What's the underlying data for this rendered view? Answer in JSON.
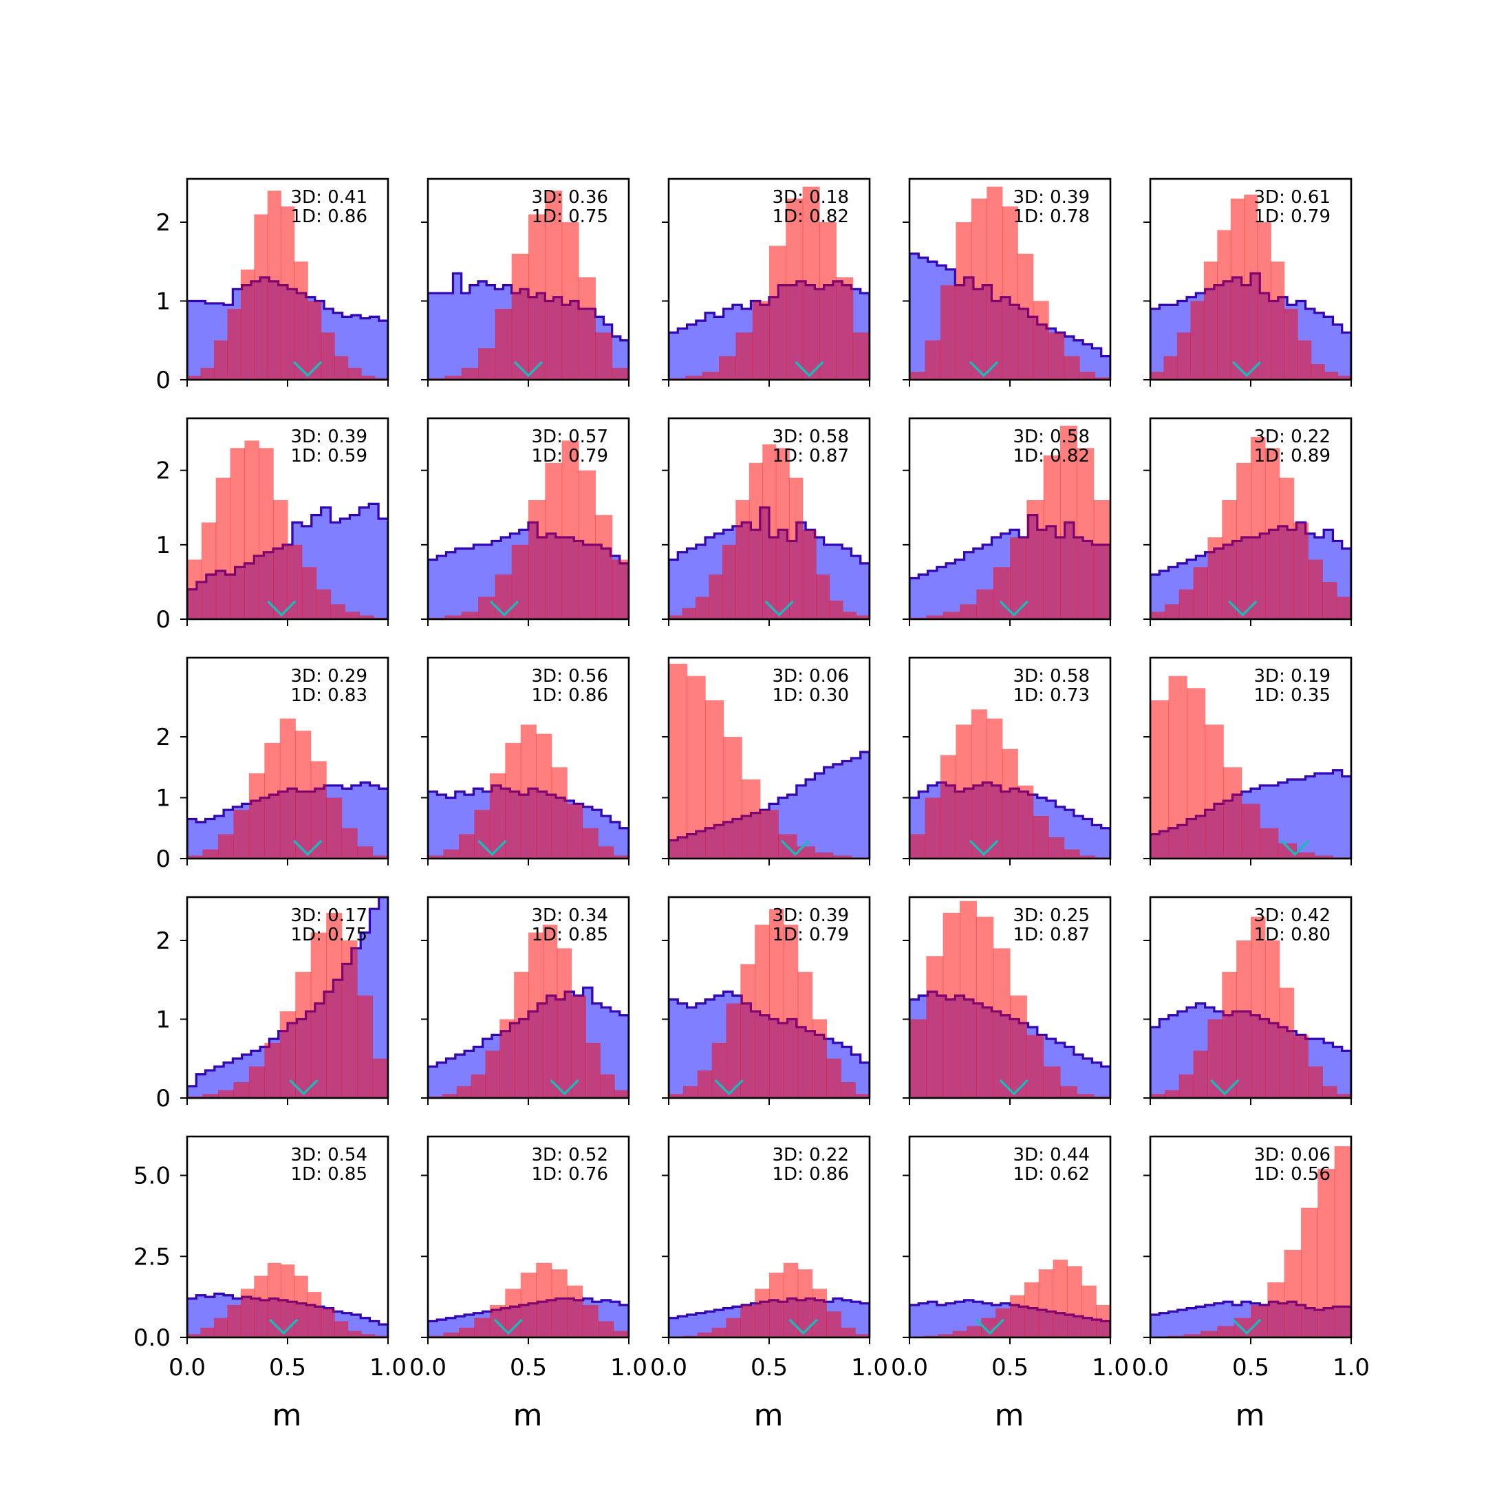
{
  "figure": {
    "xlabel": "m",
    "x_ticks": [
      "0.0",
      "0.5",
      "1.0"
    ],
    "y_ticks_rows_1_to_4": [
      "0",
      "1",
      "2"
    ],
    "y_ticks_row_5": [
      "0.0",
      "2.5",
      "5.0"
    ],
    "colors": {
      "prior_fill": "#7f7fff",
      "prior_edge": "#0000dd",
      "posterior_fill": "rgba(255,0,0,0.5)",
      "posterior_edge": "#7a0a70",
      "marker": "#1fb8b8"
    }
  },
  "chart_data": [
    {
      "type": "histogram",
      "row": 1,
      "col": 1,
      "annotation": [
        "3D: 0.41",
        "1D: 0.86"
      ],
      "ylim": [
        0,
        2.55
      ],
      "marker_x": 0.6,
      "blue_values": [
        1.0,
        1.0,
        0.97,
        0.97,
        0.95,
        1.15,
        1.2,
        1.25,
        1.3,
        1.25,
        1.2,
        1.15,
        1.1,
        1.05,
        1.0,
        0.9,
        0.85,
        0.8,
        0.82,
        0.78,
        0.8,
        0.75
      ],
      "red_values": [
        0.05,
        0.15,
        0.5,
        0.9,
        1.4,
        2.1,
        2.4,
        2.2,
        1.5,
        1.0,
        0.6,
        0.3,
        0.15,
        0.05,
        0.02
      ]
    },
    {
      "type": "histogram",
      "row": 1,
      "col": 2,
      "annotation": [
        "3D: 0.36",
        "1D: 0.75"
      ],
      "ylim": [
        0,
        2.55
      ],
      "marker_x": 0.5,
      "blue_values": [
        1.1,
        1.1,
        1.1,
        1.35,
        1.1,
        1.2,
        1.25,
        1.2,
        1.15,
        1.2,
        1.1,
        1.15,
        1.05,
        1.1,
        1.0,
        1.05,
        0.95,
        1.0,
        0.9,
        0.9,
        0.8,
        0.7,
        0.55,
        0.5
      ],
      "red_values": [
        0.02,
        0.05,
        0.15,
        0.4,
        0.9,
        1.6,
        2.1,
        2.4,
        2.0,
        1.3,
        0.6,
        0.15
      ]
    },
    {
      "type": "histogram",
      "row": 1,
      "col": 3,
      "annotation": [
        "3D: 0.18",
        "1D: 0.82"
      ],
      "ylim": [
        0,
        2.55
      ],
      "marker_x": 0.7,
      "blue_values": [
        0.6,
        0.65,
        0.7,
        0.75,
        0.85,
        0.8,
        0.9,
        0.95,
        0.9,
        1.0,
        0.95,
        1.05,
        1.2,
        1.2,
        1.25,
        1.2,
        1.15,
        1.2,
        1.25,
        1.2,
        1.15,
        1.1
      ],
      "red_values": [
        0.02,
        0.05,
        0.1,
        0.3,
        0.6,
        1.0,
        1.7,
        2.3,
        2.45,
        2.0,
        1.3,
        0.6
      ]
    },
    {
      "type": "histogram",
      "row": 1,
      "col": 4,
      "annotation": [
        "3D: 0.39",
        "1D: 0.78"
      ],
      "ylim": [
        0,
        2.55
      ],
      "marker_x": 0.37,
      "blue_values": [
        1.6,
        1.55,
        1.5,
        1.45,
        1.4,
        1.2,
        1.3,
        1.15,
        1.2,
        1.0,
        1.05,
        0.95,
        0.9,
        0.8,
        0.7,
        0.65,
        0.6,
        0.55,
        0.5,
        0.45,
        0.4,
        0.3
      ],
      "red_values": [
        0.1,
        0.5,
        1.2,
        2.0,
        2.3,
        2.45,
        2.2,
        1.6,
        1.0,
        0.6,
        0.3,
        0.1,
        0.03
      ]
    },
    {
      "type": "histogram",
      "row": 1,
      "col": 5,
      "annotation": [
        "3D: 0.61",
        "1D: 0.79"
      ],
      "ylim": [
        0,
        2.55
      ],
      "marker_x": 0.48,
      "blue_values": [
        0.9,
        0.95,
        0.95,
        1.0,
        1.05,
        1.1,
        1.15,
        1.2,
        1.25,
        1.3,
        1.2,
        1.35,
        1.1,
        1.0,
        1.05,
        0.95,
        1.0,
        0.9,
        0.85,
        0.8,
        0.7,
        0.6
      ],
      "red_values": [
        0.1,
        0.3,
        0.6,
        1.0,
        1.5,
        1.9,
        2.3,
        2.35,
        2.0,
        1.5,
        0.9,
        0.5,
        0.2,
        0.1,
        0.05
      ]
    },
    {
      "type": "histogram",
      "row": 2,
      "col": 1,
      "annotation": [
        "3D: 0.39",
        "1D: 0.59"
      ],
      "ylim": [
        0,
        2.7
      ],
      "marker_x": 0.47,
      "blue_values": [
        0.4,
        0.5,
        0.6,
        0.65,
        0.6,
        0.7,
        0.75,
        0.85,
        0.9,
        0.95,
        1.0,
        1.3,
        1.25,
        1.4,
        1.5,
        1.3,
        1.35,
        1.4,
        1.5,
        1.55,
        1.35
      ],
      "red_values": [
        0.8,
        1.3,
        1.9,
        2.3,
        2.4,
        2.3,
        1.6,
        1.0,
        0.7,
        0.4,
        0.2,
        0.1,
        0.05,
        0.02
      ]
    },
    {
      "type": "histogram",
      "row": 2,
      "col": 2,
      "annotation": [
        "3D: 0.57",
        "1D: 0.79"
      ],
      "ylim": [
        0,
        2.7
      ],
      "marker_x": 0.38,
      "blue_values": [
        0.8,
        0.85,
        0.9,
        0.95,
        0.95,
        1.0,
        1.0,
        1.05,
        1.1,
        1.15,
        1.2,
        1.3,
        1.1,
        1.15,
        1.1,
        1.1,
        1.05,
        1.0,
        1.0,
        0.95,
        0.85,
        0.75
      ],
      "red_values": [
        0.02,
        0.05,
        0.1,
        0.3,
        0.6,
        1.0,
        1.6,
        2.1,
        2.4,
        2.0,
        1.4,
        0.8
      ]
    },
    {
      "type": "histogram",
      "row": 2,
      "col": 3,
      "annotation": [
        "3D: 0.58",
        "1D: 0.87"
      ],
      "ylim": [
        0,
        2.7
      ],
      "marker_x": 0.55,
      "blue_values": [
        0.8,
        0.9,
        0.95,
        1.0,
        1.1,
        1.15,
        1.2,
        1.25,
        1.3,
        1.2,
        1.5,
        1.1,
        1.2,
        1.05,
        1.3,
        1.2,
        1.1,
        1.0,
        1.0,
        0.95,
        0.85,
        0.75
      ],
      "red_values": [
        0.05,
        0.15,
        0.3,
        0.6,
        1.0,
        1.6,
        2.1,
        2.35,
        2.3,
        1.9,
        1.2,
        0.6,
        0.25,
        0.1,
        0.05
      ]
    },
    {
      "type": "histogram",
      "row": 2,
      "col": 4,
      "annotation": [
        "3D: 0.58",
        "1D: 0.82"
      ],
      "ylim": [
        0,
        2.7
      ],
      "marker_x": 0.52,
      "blue_values": [
        0.55,
        0.6,
        0.65,
        0.7,
        0.75,
        0.8,
        0.9,
        0.95,
        1.0,
        1.1,
        1.15,
        1.2,
        1.1,
        1.4,
        1.2,
        1.25,
        1.1,
        1.3,
        1.1,
        1.05,
        1.0,
        1.0
      ],
      "red_values": [
        0.02,
        0.05,
        0.1,
        0.2,
        0.4,
        0.7,
        1.1,
        1.6,
        2.2,
        2.6,
        2.3,
        1.6
      ]
    },
    {
      "type": "histogram",
      "row": 2,
      "col": 5,
      "annotation": [
        "3D: 0.22",
        "1D: 0.89"
      ],
      "ylim": [
        0,
        2.7
      ],
      "marker_x": 0.46,
      "blue_values": [
        0.6,
        0.65,
        0.7,
        0.75,
        0.8,
        0.85,
        0.9,
        0.95,
        1.0,
        1.05,
        1.1,
        1.1,
        1.15,
        1.2,
        1.25,
        1.2,
        1.3,
        1.15,
        1.1,
        1.2,
        1.05,
        0.95
      ],
      "red_values": [
        0.1,
        0.2,
        0.4,
        0.7,
        1.1,
        1.6,
        2.1,
        2.45,
        2.3,
        1.9,
        1.3,
        0.8,
        0.5,
        0.3
      ]
    },
    {
      "type": "histogram",
      "row": 3,
      "col": 1,
      "annotation": [
        "3D: 0.29",
        "1D: 0.83"
      ],
      "ylim": [
        0,
        3.3
      ],
      "marker_x": 0.6,
      "blue_values": [
        0.65,
        0.6,
        0.65,
        0.7,
        0.8,
        0.85,
        0.9,
        0.95,
        1.0,
        1.05,
        1.1,
        1.15,
        1.1,
        1.1,
        1.15,
        1.2,
        1.2,
        1.15,
        1.2,
        1.25,
        1.2,
        1.15
      ],
      "red_values": [
        0.05,
        0.15,
        0.4,
        0.8,
        1.4,
        1.9,
        2.3,
        2.1,
        1.6,
        1.0,
        0.5,
        0.2,
        0.05
      ]
    },
    {
      "type": "histogram",
      "row": 3,
      "col": 2,
      "annotation": [
        "3D: 0.56",
        "1D: 0.86"
      ],
      "ylim": [
        0,
        3.3
      ],
      "marker_x": 0.32,
      "blue_values": [
        1.1,
        1.05,
        1.0,
        1.1,
        1.05,
        1.15,
        1.1,
        1.2,
        1.15,
        1.1,
        1.05,
        1.15,
        1.1,
        1.05,
        1.0,
        0.95,
        0.9,
        0.85,
        0.8,
        0.7,
        0.6,
        0.5
      ],
      "red_values": [
        0.05,
        0.15,
        0.4,
        0.8,
        1.4,
        1.9,
        2.2,
        2.05,
        1.5,
        0.9,
        0.5,
        0.2,
        0.05
      ]
    },
    {
      "type": "histogram",
      "row": 3,
      "col": 3,
      "annotation": [
        "3D: 0.06",
        "1D: 0.30"
      ],
      "ylim": [
        0,
        3.3
      ],
      "marker_x": 0.63,
      "blue_values": [
        0.3,
        0.35,
        0.4,
        0.45,
        0.5,
        0.55,
        0.6,
        0.65,
        0.7,
        0.75,
        0.8,
        0.9,
        1.0,
        1.05,
        1.2,
        1.3,
        1.4,
        1.5,
        1.55,
        1.6,
        1.65,
        1.75
      ],
      "red_values": [
        3.2,
        3.0,
        2.6,
        2.0,
        1.3,
        0.8,
        0.4,
        0.2,
        0.1,
        0.05,
        0.02
      ]
    },
    {
      "type": "histogram",
      "row": 3,
      "col": 4,
      "annotation": [
        "3D: 0.58",
        "1D: 0.73"
      ],
      "ylim": [
        0,
        3.3
      ],
      "marker_x": 0.37,
      "blue_values": [
        1.0,
        1.1,
        1.2,
        1.25,
        1.2,
        1.1,
        1.15,
        1.2,
        1.25,
        1.2,
        1.1,
        1.15,
        1.1,
        1.05,
        1.0,
        0.95,
        0.85,
        0.8,
        0.7,
        0.65,
        0.55,
        0.5
      ],
      "red_values": [
        0.4,
        1.0,
        1.7,
        2.2,
        2.45,
        2.3,
        1.8,
        1.2,
        0.7,
        0.35,
        0.15,
        0.05,
        0.02
      ]
    },
    {
      "type": "histogram",
      "row": 3,
      "col": 5,
      "annotation": [
        "3D: 0.19",
        "1D: 0.35"
      ],
      "ylim": [
        0,
        3.3
      ],
      "marker_x": 0.72,
      "blue_values": [
        0.4,
        0.45,
        0.5,
        0.55,
        0.65,
        0.7,
        0.8,
        0.9,
        0.95,
        1.05,
        1.1,
        1.15,
        1.2,
        1.2,
        1.25,
        1.3,
        1.3,
        1.35,
        1.4,
        1.4,
        1.45,
        1.35
      ],
      "red_values": [
        2.6,
        3.0,
        2.8,
        2.2,
        1.5,
        0.9,
        0.5,
        0.25,
        0.1,
        0.05,
        0.02
      ]
    },
    {
      "type": "histogram",
      "row": 4,
      "col": 1,
      "annotation": [
        "3D: 0.17",
        "1D: 0.75"
      ],
      "ylim": [
        0,
        2.55
      ],
      "marker_x": 0.58,
      "blue_values": [
        0.15,
        0.3,
        0.35,
        0.4,
        0.45,
        0.5,
        0.55,
        0.6,
        0.65,
        0.75,
        0.85,
        0.95,
        1.0,
        1.1,
        1.2,
        1.35,
        1.5,
        1.7,
        1.9,
        2.1,
        2.4,
        2.55
      ],
      "red_values": [
        0.02,
        0.05,
        0.1,
        0.2,
        0.4,
        0.7,
        1.1,
        1.6,
        2.1,
        2.35,
        2.0,
        1.3,
        0.5
      ]
    },
    {
      "type": "histogram",
      "row": 4,
      "col": 2,
      "annotation": [
        "3D: 0.34",
        "1D: 0.85"
      ],
      "ylim": [
        0,
        2.55
      ],
      "marker_x": 0.68,
      "blue_values": [
        0.4,
        0.45,
        0.5,
        0.55,
        0.6,
        0.65,
        0.75,
        0.8,
        0.85,
        0.95,
        1.0,
        1.1,
        1.2,
        1.3,
        1.25,
        1.35,
        1.3,
        1.4,
        1.2,
        1.15,
        1.1,
        1.05
      ],
      "red_values": [
        0.02,
        0.05,
        0.15,
        0.3,
        0.6,
        1.0,
        1.6,
        2.1,
        2.2,
        1.9,
        1.3,
        0.7,
        0.3,
        0.1
      ]
    },
    {
      "type": "histogram",
      "row": 4,
      "col": 3,
      "annotation": [
        "3D: 0.39",
        "1D: 0.79"
      ],
      "ylim": [
        0,
        2.55
      ],
      "marker_x": 0.3,
      "blue_values": [
        1.25,
        1.2,
        1.15,
        1.2,
        1.25,
        1.3,
        1.35,
        1.3,
        1.2,
        1.1,
        1.05,
        1.0,
        0.95,
        1.0,
        0.9,
        0.85,
        0.8,
        0.75,
        0.7,
        0.65,
        0.55,
        0.45
      ],
      "red_values": [
        0.05,
        0.15,
        0.35,
        0.7,
        1.2,
        1.7,
        2.2,
        2.4,
        2.2,
        1.6,
        1.0,
        0.5,
        0.2,
        0.05
      ]
    },
    {
      "type": "histogram",
      "row": 4,
      "col": 4,
      "annotation": [
        "3D: 0.25",
        "1D: 0.87"
      ],
      "ylim": [
        0,
        2.55
      ],
      "marker_x": 0.52,
      "blue_values": [
        1.25,
        1.3,
        1.35,
        1.3,
        1.25,
        1.3,
        1.25,
        1.2,
        1.15,
        1.1,
        1.05,
        1.0,
        0.95,
        0.9,
        0.8,
        0.75,
        0.7,
        0.65,
        0.55,
        0.5,
        0.45,
        0.4
      ],
      "red_values": [
        1.0,
        1.8,
        2.35,
        2.5,
        2.3,
        1.9,
        1.3,
        0.8,
        0.4,
        0.15,
        0.05,
        0.02
      ]
    },
    {
      "type": "histogram",
      "row": 4,
      "col": 5,
      "annotation": [
        "3D: 0.42",
        "1D: 0.80"
      ],
      "ylim": [
        0,
        2.55
      ],
      "marker_x": 0.37,
      "blue_values": [
        0.9,
        1.0,
        1.05,
        1.1,
        1.15,
        1.2,
        1.15,
        1.1,
        1.05,
        1.1,
        1.1,
        1.05,
        1.0,
        0.95,
        0.9,
        0.85,
        0.8,
        0.75,
        0.75,
        0.7,
        0.65,
        0.6
      ],
      "red_values": [
        0.05,
        0.1,
        0.3,
        0.6,
        1.0,
        1.6,
        2.0,
        2.3,
        2.0,
        1.4,
        0.8,
        0.4,
        0.15,
        0.05
      ]
    },
    {
      "type": "histogram",
      "row": 5,
      "col": 1,
      "annotation": [
        "3D: 0.54",
        "1D: 0.85"
      ],
      "ylim": [
        0,
        6.2
      ],
      "marker_x": 0.48,
      "blue_values": [
        1.2,
        1.3,
        1.25,
        1.35,
        1.3,
        1.2,
        1.25,
        1.2,
        1.15,
        1.2,
        1.15,
        1.1,
        1.05,
        1.0,
        0.95,
        0.9,
        0.8,
        0.75,
        0.7,
        0.6,
        0.5,
        0.4
      ],
      "red_values": [
        0.1,
        0.3,
        0.6,
        1.0,
        1.5,
        1.9,
        2.3,
        2.25,
        1.9,
        1.4,
        0.9,
        0.5,
        0.2,
        0.1,
        0.05
      ]
    },
    {
      "type": "histogram",
      "row": 5,
      "col": 2,
      "annotation": [
        "3D: 0.52",
        "1D: 0.76"
      ],
      "ylim": [
        0,
        6.2
      ],
      "marker_x": 0.4,
      "blue_values": [
        0.5,
        0.55,
        0.6,
        0.65,
        0.7,
        0.75,
        0.8,
        0.85,
        0.9,
        0.95,
        1.0,
        1.05,
        1.1,
        1.15,
        1.2,
        1.2,
        1.15,
        1.2,
        1.1,
        1.15,
        1.1,
        1.0
      ],
      "red_values": [
        0.05,
        0.15,
        0.3,
        0.6,
        1.0,
        1.5,
        2.0,
        2.3,
        2.1,
        1.6,
        1.0,
        0.5,
        0.2
      ]
    },
    {
      "type": "histogram",
      "row": 5,
      "col": 3,
      "annotation": [
        "3D: 0.22",
        "1D: 0.86"
      ],
      "ylim": [
        0,
        6.2
      ],
      "marker_x": 0.67,
      "blue_values": [
        0.6,
        0.65,
        0.7,
        0.75,
        0.8,
        0.85,
        0.9,
        0.95,
        1.0,
        1.05,
        1.1,
        1.15,
        1.1,
        1.2,
        1.15,
        1.2,
        1.15,
        1.1,
        1.2,
        1.15,
        1.1,
        1.05
      ],
      "red_values": [
        0.02,
        0.05,
        0.15,
        0.3,
        0.6,
        1.0,
        1.5,
        2.0,
        2.3,
        2.1,
        1.5,
        0.8,
        0.3,
        0.1
      ]
    },
    {
      "type": "histogram",
      "row": 5,
      "col": 4,
      "annotation": [
        "3D: 0.44",
        "1D: 0.62"
      ],
      "ylim": [
        0,
        6.2
      ],
      "marker_x": 0.4,
      "blue_values": [
        1.0,
        1.05,
        1.1,
        1.0,
        1.05,
        1.1,
        1.15,
        1.1,
        1.05,
        1.0,
        1.05,
        1.0,
        0.95,
        0.9,
        0.85,
        0.8,
        0.75,
        0.7,
        0.65,
        0.6,
        0.55,
        0.5
      ],
      "red_values": [
        0.02,
        0.05,
        0.1,
        0.2,
        0.35,
        0.6,
        0.9,
        1.3,
        1.7,
        2.1,
        2.4,
        2.2,
        1.6,
        1.0
      ]
    },
    {
      "type": "histogram",
      "row": 5,
      "col": 5,
      "annotation": [
        "3D: 0.06",
        "1D: 0.56"
      ],
      "ylim": [
        0,
        6.2
      ],
      "marker_x": 0.48,
      "blue_values": [
        0.7,
        0.75,
        0.8,
        0.85,
        0.9,
        0.95,
        1.0,
        1.05,
        1.1,
        1.0,
        1.1,
        1.05,
        1.0,
        1.1,
        1.05,
        1.1,
        1.0,
        0.9,
        0.85,
        0.9,
        0.95,
        0.95
      ],
      "red_values": [
        0.02,
        0.05,
        0.1,
        0.2,
        0.35,
        0.6,
        1.0,
        1.7,
        2.7,
        4.0,
        5.2,
        5.9
      ]
    }
  ]
}
